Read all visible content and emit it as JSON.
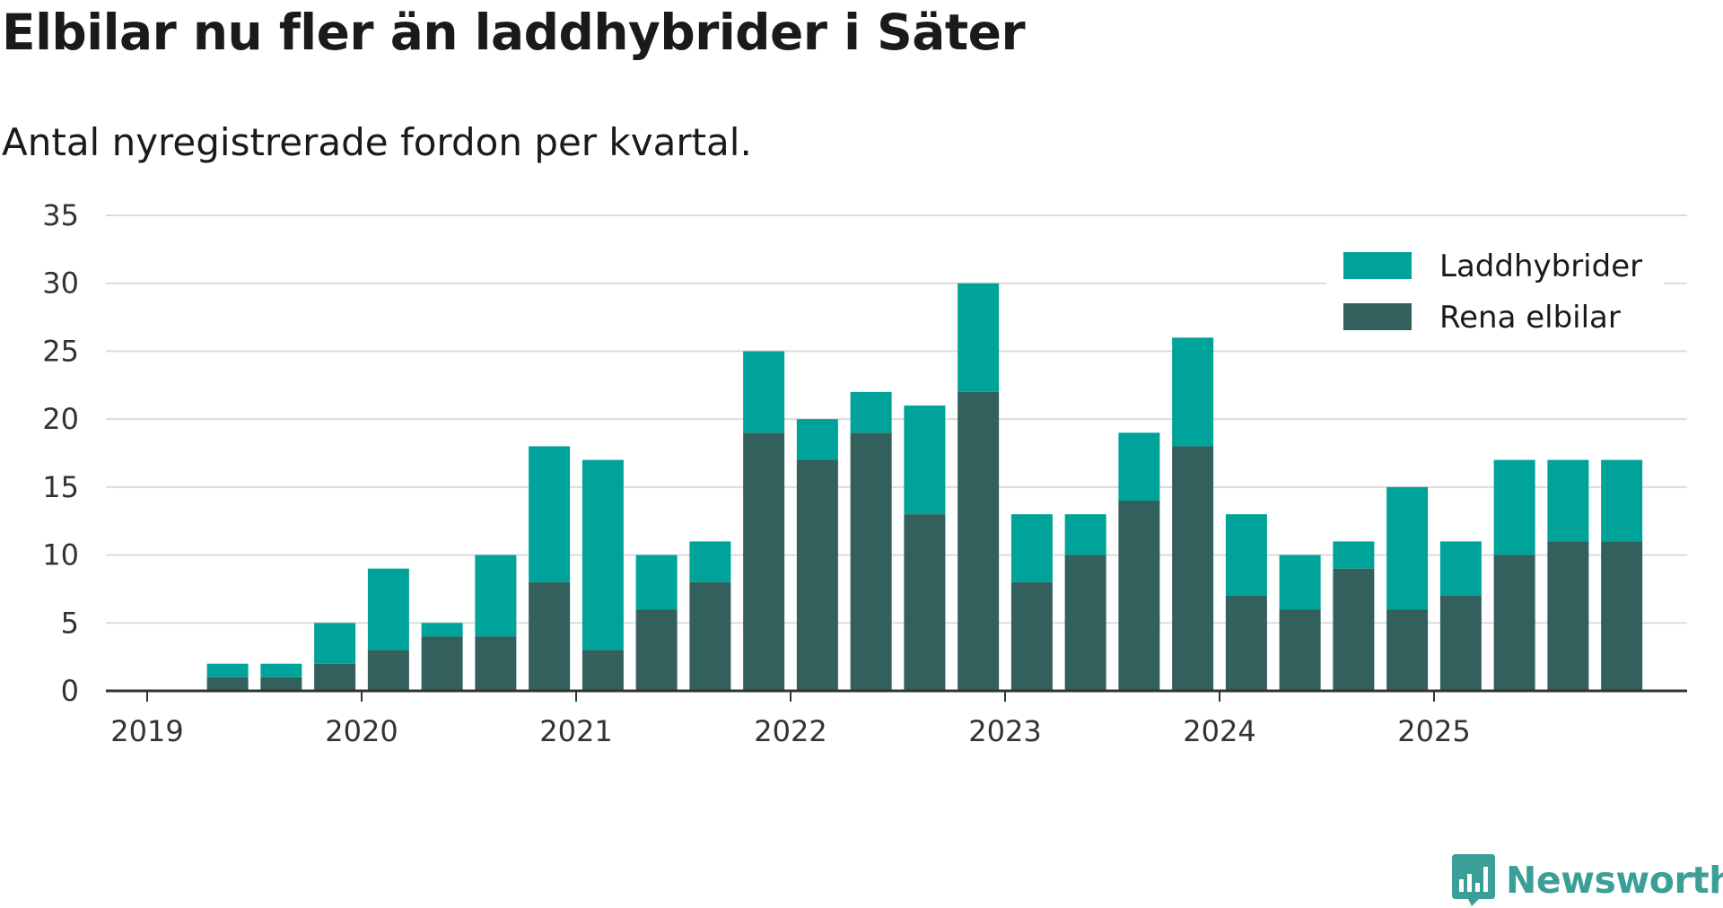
{
  "chart_data": {
    "type": "bar",
    "stacked": true,
    "title": "Elbilar nu fler än laddhybrider i Säter",
    "subtitle": "Antal nyregistrerade fordon per kvartal.",
    "x_tick_labels": [
      "2019",
      "2020",
      "2021",
      "2022",
      "2023",
      "2024",
      "2025"
    ],
    "categories": [
      "2019 Q2",
      "2019 Q3",
      "2019 Q4",
      "2020 Q1",
      "2020 Q2",
      "2020 Q3",
      "2020 Q4",
      "2021 Q1",
      "2021 Q2",
      "2021 Q3",
      "2021 Q4",
      "2022 Q1",
      "2022 Q2",
      "2022 Q3",
      "2022 Q4",
      "2023 Q1",
      "2023 Q2",
      "2023 Q3",
      "2023 Q4",
      "2024 Q1",
      "2024 Q2",
      "2024 Q3",
      "2024 Q4",
      "2025 Q1",
      "2025 Q2",
      "2025 Q3",
      "2025 Q4"
    ],
    "series": [
      {
        "name": "Rena elbilar",
        "color": "#335f5c",
        "values": [
          1,
          1,
          2,
          3,
          4,
          4,
          8,
          3,
          6,
          8,
          19,
          17,
          19,
          13,
          22,
          8,
          10,
          14,
          18,
          7,
          6,
          9,
          6,
          7,
          10,
          11,
          11
        ]
      },
      {
        "name": "Laddhybrider",
        "color": "#00a39a",
        "values": [
          1,
          1,
          3,
          6,
          1,
          6,
          10,
          14,
          4,
          3,
          6,
          3,
          3,
          8,
          8,
          5,
          3,
          5,
          8,
          6,
          4,
          2,
          9,
          4,
          7,
          6,
          6
        ]
      }
    ],
    "legend_order": [
      "Laddhybrider",
      "Rena elbilar"
    ],
    "y_ticks": [
      0,
      5,
      10,
      15,
      20,
      25,
      30,
      35
    ],
    "ylim": [
      0,
      35
    ],
    "grid": true,
    "legend_position": "top-right"
  },
  "branding": {
    "name": "Newsworthy",
    "icon": "newsworthy-logo-icon",
    "color": "#3b9e97"
  }
}
